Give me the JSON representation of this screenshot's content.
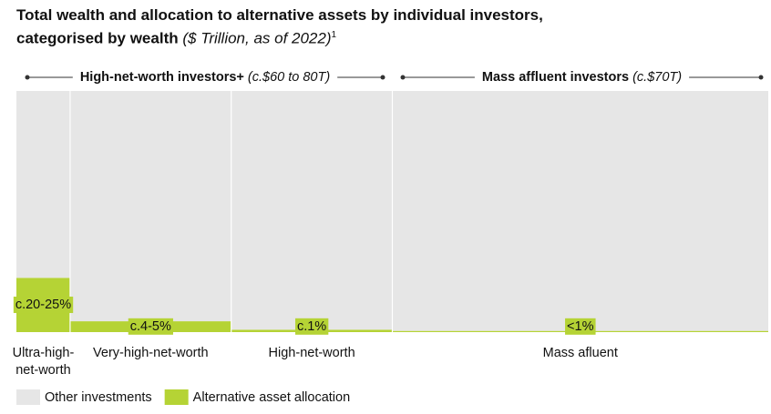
{
  "chart_data": {
    "type": "mekko",
    "title": "Total wealth and allocation to alternative assets by individual investors, categorised by wealth",
    "title_note": "($ Trillion, as of 2022)",
    "title_footnote": "1",
    "groups": [
      {
        "label": "High-net-worth investors+",
        "note": "(c.$60 to 80T)"
      },
      {
        "label": "Mass affluent investors",
        "note": "(c.$70T)"
      }
    ],
    "categories": [
      "Ultra-high-net-worth",
      "Very-high-net-worth",
      "High-net-worth",
      "Mass afluent"
    ],
    "widths": [
      10,
      30,
      30,
      70
    ],
    "xlim": [
      0,
      140
    ],
    "ylim": [
      0,
      100
    ],
    "series": [
      {
        "name": "Alternative asset allocation",
        "color": "#b5d335",
        "values": [
          22.5,
          4.5,
          1,
          0.5
        ],
        "value_labels": [
          "c.20-25%",
          "c.4-5%",
          "c.1%",
          "<1%"
        ]
      },
      {
        "name": "Other investments",
        "color": "#e6e6e6",
        "values": [
          77.5,
          95.5,
          99,
          99.5
        ]
      }
    ]
  }
}
